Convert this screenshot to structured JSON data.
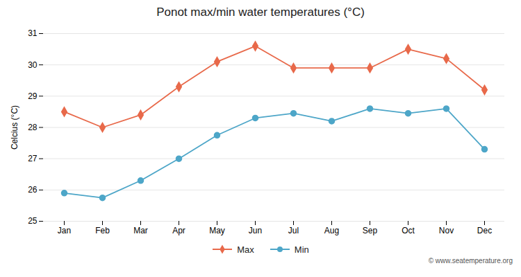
{
  "chart_data": {
    "type": "line",
    "title": "Ponot max/min water temperatures (°C)",
    "ylabel": "Celcius (°C)",
    "categories": [
      "Jan",
      "Feb",
      "Mar",
      "Apr",
      "May",
      "Jun",
      "Jul",
      "Aug",
      "Sep",
      "Oct",
      "Nov",
      "Dec"
    ],
    "series": [
      {
        "name": "Max",
        "color": "#e8694a",
        "marker": "diamond",
        "values": [
          28.5,
          28.0,
          28.4,
          29.3,
          30.1,
          30.6,
          29.9,
          29.9,
          29.9,
          30.5,
          30.2,
          29.2
        ]
      },
      {
        "name": "Min",
        "color": "#4da6c8",
        "marker": "circle",
        "values": [
          25.9,
          25.75,
          26.3,
          27.0,
          27.75,
          28.3,
          28.45,
          28.2,
          28.6,
          28.45,
          28.6,
          27.3
        ]
      }
    ],
    "ylim": [
      25,
      31
    ],
    "yticks": [
      25,
      26,
      27,
      28,
      29,
      30,
      31
    ],
    "grid": true,
    "legend": "bottom",
    "annotations": [
      "© www.seatemperature.org"
    ]
  }
}
